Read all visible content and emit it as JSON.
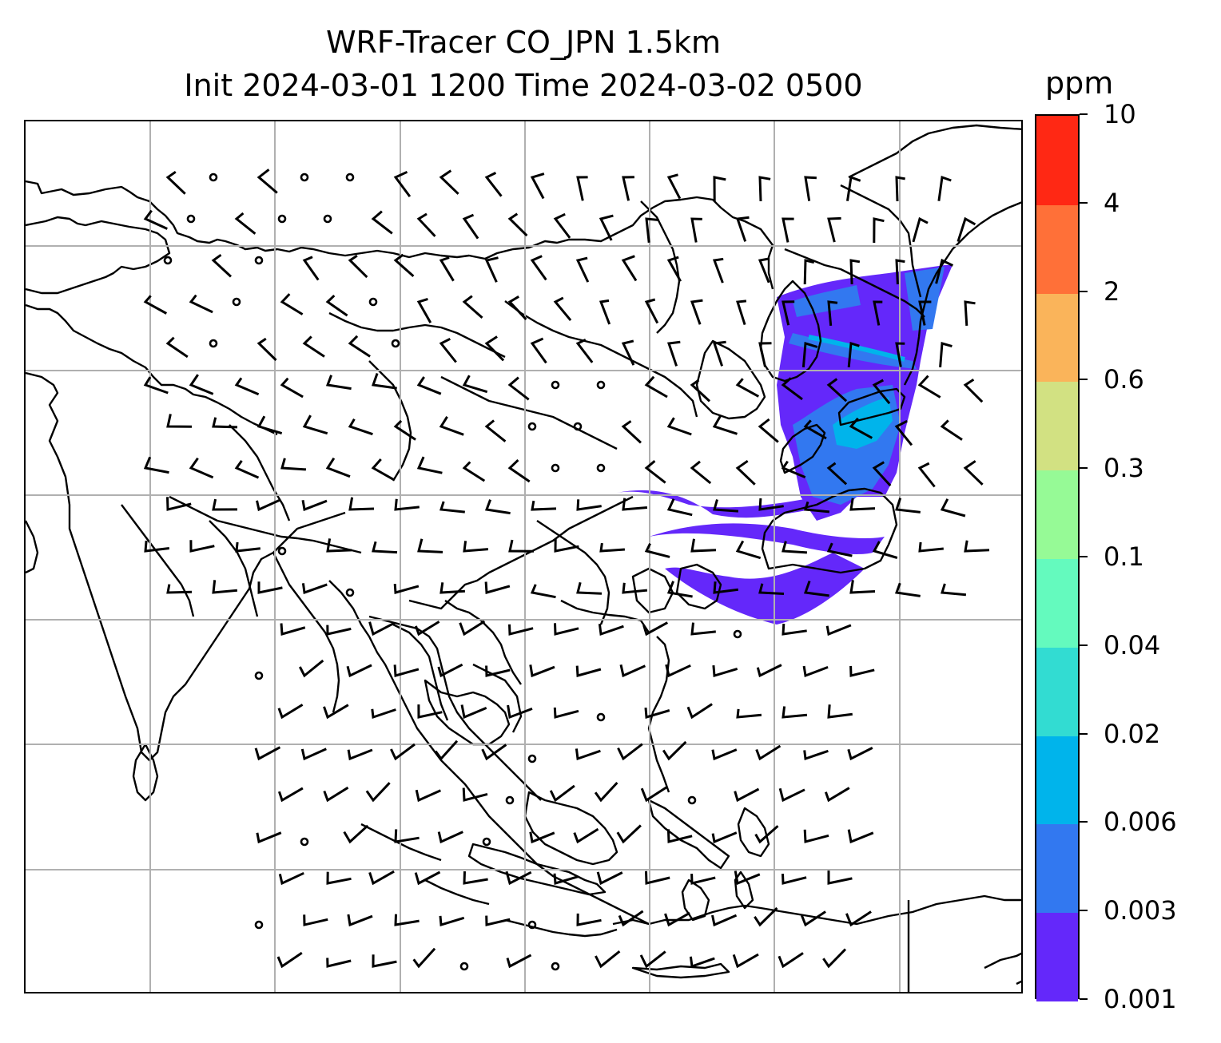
{
  "header": {
    "title_line1": "WRF-Tracer CO_JPN 1.5km",
    "title_line2": "Init 2024-03-01 1200 Time 2024-03-02 0500"
  },
  "colorbar": {
    "unit": "ppm",
    "levels": [
      "0.001",
      "0.003",
      "0.006",
      "0.02",
      "0.04",
      "0.1",
      "0.3",
      "0.6",
      "2",
      "4",
      "10"
    ],
    "colors": [
      "#6428fa",
      "#3278f0",
      "#00b4eb",
      "#32dcd2",
      "#64fabe",
      "#96fa96",
      "#d2e182",
      "#fab45a",
      "#ff7038",
      "#ff2814"
    ]
  },
  "map": {
    "grid": true,
    "wind_barbs": true,
    "tracer_field": "CO"
  }
}
